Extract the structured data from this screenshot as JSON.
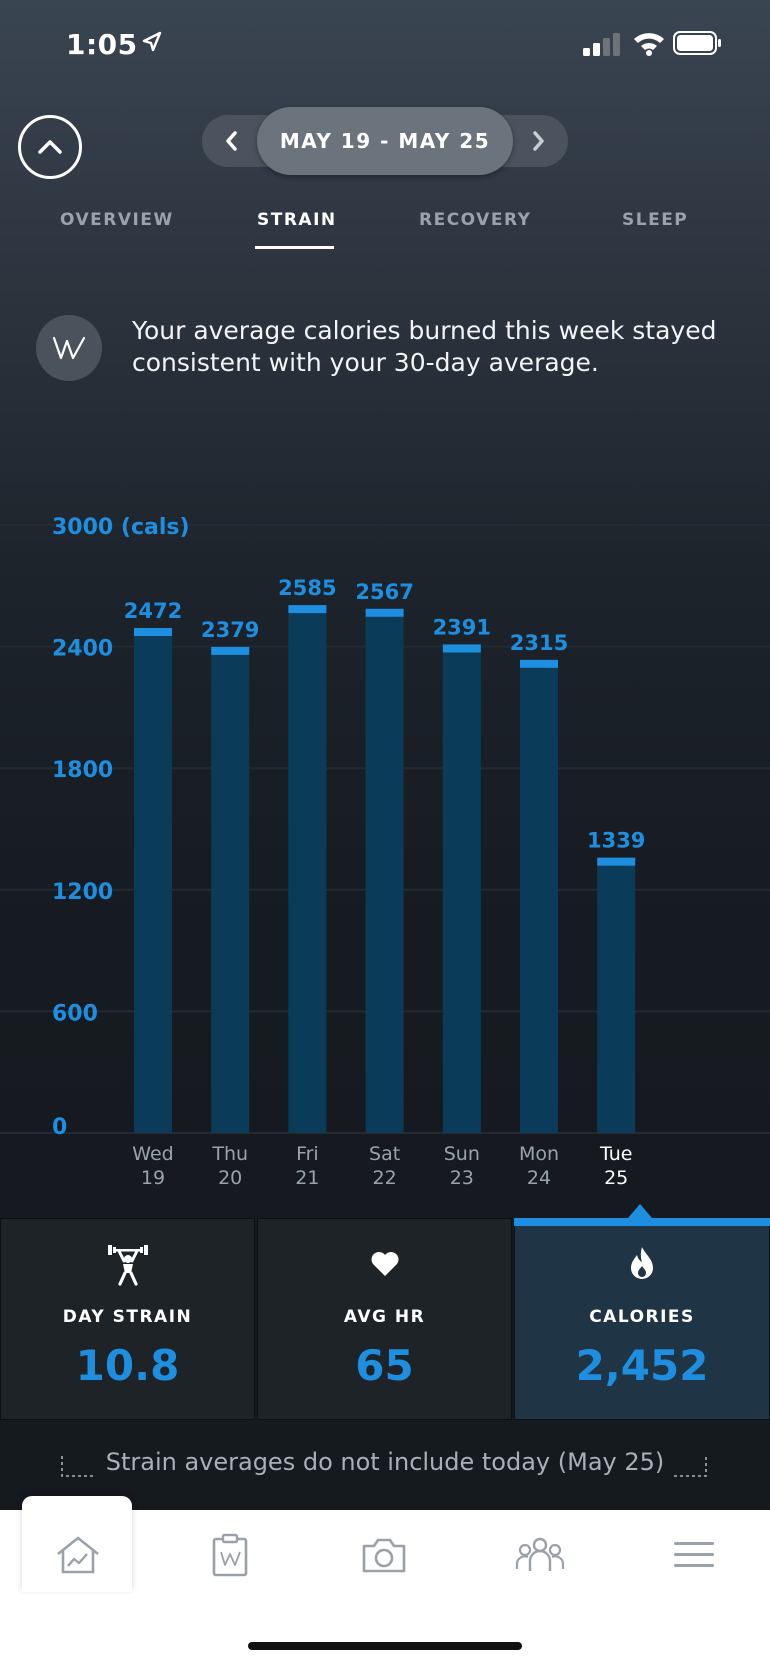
{
  "status_bar": {
    "time": "1:05"
  },
  "date_nav": {
    "range": "MAY 19 - MAY 25"
  },
  "tabs": [
    {
      "label": "OVERVIEW",
      "active": false
    },
    {
      "label": "STRAIN",
      "active": true
    },
    {
      "label": "RECOVERY",
      "active": false
    },
    {
      "label": "SLEEP",
      "active": false
    }
  ],
  "insight": {
    "text": "Your average calories burned this week stayed consistent with your 30-day average."
  },
  "chart_data": {
    "type": "bar",
    "categories": [
      "Wed 19",
      "Thu 20",
      "Fri 21",
      "Sat 22",
      "Sun 23",
      "Mon 24",
      "Tue 25"
    ],
    "day_names": [
      "Wed",
      "Thu",
      "Fri",
      "Sat",
      "Sun",
      "Mon",
      "Tue"
    ],
    "day_numbers": [
      "19",
      "20",
      "21",
      "22",
      "23",
      "24",
      "25"
    ],
    "values": [
      2472,
      2379,
      2585,
      2567,
      2391,
      2315,
      1339
    ],
    "value_labels": [
      "2472",
      "2379",
      "2585",
      "2567",
      "2391",
      "2315",
      "1339"
    ],
    "yticks": [
      0,
      600,
      1200,
      1800,
      2400,
      3000
    ],
    "ytick_labels": [
      "0",
      "600",
      "1200",
      "1800",
      "2400",
      "3000 (cals)"
    ],
    "ylim": [
      0,
      3000
    ],
    "selected_index": 6,
    "colors": {
      "bar": "#0a3c5a",
      "cap": "#1e8fe0",
      "label": "#1e8fe0"
    }
  },
  "metrics": [
    {
      "label": "DAY STRAIN",
      "value": "10.8",
      "icon": "weightlifter-icon"
    },
    {
      "label": "AVG HR",
      "value": "65",
      "icon": "heart-icon"
    },
    {
      "label": "CALORIES",
      "value": "2,452",
      "icon": "flame-icon",
      "active": true
    }
  ],
  "note": {
    "text": "Strain averages do not include today (May 25)"
  },
  "tab_bar": [
    {
      "icon": "home-chart-icon",
      "active": true
    },
    {
      "icon": "journal-icon"
    },
    {
      "icon": "camera-icon"
    },
    {
      "icon": "community-icon"
    },
    {
      "icon": "menu-icon"
    }
  ]
}
